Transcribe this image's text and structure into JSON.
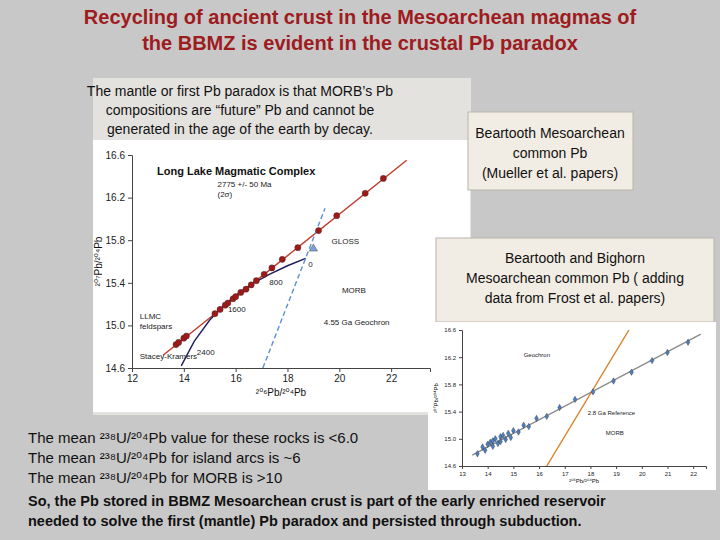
{
  "slide": {
    "title": [
      "Recycling of ancient crust in the Mesoarchean magmas of",
      "the BBMZ is evident in the crustal Pb paradox"
    ],
    "note": [
      "The mantle or first Pb paradox is that MORB’s Pb",
      "compositions are “future” Pb and cannot be",
      "generated in the age of the earth by decay."
    ],
    "box1": [
      "Beartooth Mesoarchean",
      "common Pb",
      "(Mueller et al. papers)"
    ],
    "box2": [
      "Beartooth and Bighorn",
      "Mesoarchean common Pb ( adding",
      "data from Frost et al. papers)"
    ],
    "body": [
      "The mean ²³⁸U/²⁰⁴Pb value for these rocks is <6.0",
      "The mean ²³⁸U/²⁰⁴Pb for island arcs is ~6",
      "The mean ²³⁸U/²⁰⁴Pb for MORB is >10"
    ],
    "conclusion": [
      "So, the Pb stored in BBMZ Mesoarchean crust is part of the early enriched reservoir",
      "needed to solve the first (mantle) Pb paradox and persisted through subduction."
    ]
  },
  "chart_data": [
    {
      "type": "scatter",
      "title": "Long Lake Magmatic Complex",
      "x_label": "²⁰⁶Pb/²⁰⁴Pb",
      "y_label": "²⁰⁷Pb/²⁰⁴Pb",
      "xlim": [
        12,
        23.5
      ],
      "xticks": [
        12,
        14,
        16,
        18,
        20,
        22
      ],
      "ylim": [
        14.6,
        16.6
      ],
      "yticks": [
        14.6,
        {
          "value": 15,
          "label": "15.0"
        },
        15.4,
        15.8,
        16.2,
        16.6
      ],
      "grid": false,
      "series": [
        {
          "type": "line",
          "color": "#c0392b",
          "line_style": "solid",
          "x": [
            13.2,
            22.6
          ],
          "values": [
            14.72,
            16.55
          ]
        },
        {
          "type": "line",
          "color": "#1c1c5e",
          "line_style": "solid",
          "x": [
            13.9,
            14.4,
            15.0,
            15.6,
            16.1,
            16.7,
            17.3,
            18.0,
            18.7
          ],
          "values": [
            14.62,
            14.85,
            15.05,
            15.2,
            15.3,
            15.4,
            15.48,
            15.56,
            15.63
          ]
        },
        {
          "type": "line",
          "color": "#5b8fd6",
          "line_style": "dashed",
          "x": [
            17.05,
            19.45
          ],
          "values": [
            14.6,
            16.1
          ]
        },
        {
          "type": "scatter",
          "color": "#a01818",
          "marker": "circle",
          "x": [
            13.7,
            13.8,
            14.0,
            14.1,
            15.2,
            15.4,
            15.6,
            15.7,
            15.9,
            16.0,
            16.2,
            16.4,
            16.6,
            16.8,
            17.1,
            17.4,
            17.8,
            18.4,
            19.2,
            19.9,
            21.0,
            21.7
          ],
          "values": [
            14.82,
            14.84,
            14.88,
            14.9,
            15.11,
            15.15,
            15.19,
            15.21,
            15.25,
            15.27,
            15.31,
            15.34,
            15.38,
            15.42,
            15.48,
            15.54,
            15.62,
            15.73,
            15.89,
            16.03,
            16.24,
            16.38
          ]
        },
        {
          "type": "scatter",
          "color": "#7f9fd8",
          "marker": "triangle",
          "x": [
            19.0
          ],
          "values": [
            15.72
          ]
        }
      ],
      "annotations": [
        {
          "text": "2775 +/- 50 Ma",
          "x": 15.3,
          "y": 16.3
        },
        {
          "text": "(2σ)",
          "x": 15.3,
          "y": 16.21
        },
        {
          "text": "GLOSS",
          "x": 19.7,
          "y": 15.76
        },
        {
          "text": "0",
          "x": 18.8,
          "y": 15.55
        },
        {
          "text": "800",
          "x": 17.3,
          "y": 15.38
        },
        {
          "text": "1600",
          "x": 15.7,
          "y": 15.13
        },
        {
          "text": "2400",
          "x": 14.5,
          "y": 14.72
        },
        {
          "text": "MORB",
          "x": 20.1,
          "y": 15.3
        },
        {
          "text": "4.55 Ga Geochron",
          "x": 19.4,
          "y": 15.0
        },
        {
          "text": "LLMC",
          "x": 12.3,
          "y": 15.06
        },
        {
          "text": "feldspars",
          "x": 12.3,
          "y": 14.97
        },
        {
          "text": "Stacey-Kramers",
          "x": 12.3,
          "y": 14.68
        }
      ]
    },
    {
      "type": "scatter",
      "x_label": "²⁰⁶Pb/²⁰⁴Pb",
      "y_label": "²⁰⁷Pb/²⁰⁴Pb",
      "xlim": [
        13,
        22.5
      ],
      "xticks": [
        13,
        14,
        15,
        16,
        17,
        18,
        19,
        20,
        21,
        22
      ],
      "ylim": [
        14.6,
        16.6
      ],
      "yticks": [
        14.6,
        {
          "value": 15,
          "label": "15.0"
        },
        15.4,
        15.8,
        16.2,
        16.6
      ],
      "grid": false,
      "series": [
        {
          "type": "line",
          "color": "#8a8a8a",
          "line_style": "solid",
          "x": [
            13.4,
            22.3
          ],
          "values": [
            14.76,
            16.54
          ]
        },
        {
          "type": "line",
          "color": "#d9822b",
          "line_style": "solid",
          "x": [
            16.3,
            19.5
          ],
          "values": [
            14.6,
            16.6
          ]
        },
        {
          "type": "scatter",
          "color": "#4a7fc1",
          "marker": "diamond",
          "x": [
            13.6,
            13.8,
            13.9,
            14.0,
            14.1,
            14.2,
            14.2,
            14.3,
            14.4,
            14.5,
            14.5,
            14.6,
            14.7,
            14.8,
            14.9,
            15.0,
            15.2,
            15.4,
            15.6,
            15.9,
            16.3,
            16.8,
            17.4,
            18.1,
            18.9,
            19.6,
            20.4,
            21.0,
            21.8
          ],
          "values": [
            14.78,
            14.88,
            14.83,
            14.92,
            14.95,
            14.89,
            14.97,
            15.0,
            14.93,
            15.03,
            14.96,
            15.05,
            14.99,
            15.08,
            15.02,
            15.12,
            15.1,
            15.2,
            15.18,
            15.3,
            15.33,
            15.46,
            15.58,
            15.69,
            15.85,
            15.98,
            16.15,
            16.27,
            16.42
          ]
        }
      ],
      "annotations": [
        {
          "text": "Geochron",
          "x": 15.4,
          "y": 16.2
        },
        {
          "text": "2.8 Ga Reference",
          "x": 17.9,
          "y": 15.35
        },
        {
          "text": "MORB",
          "x": 18.6,
          "y": 15.05
        }
      ]
    }
  ]
}
